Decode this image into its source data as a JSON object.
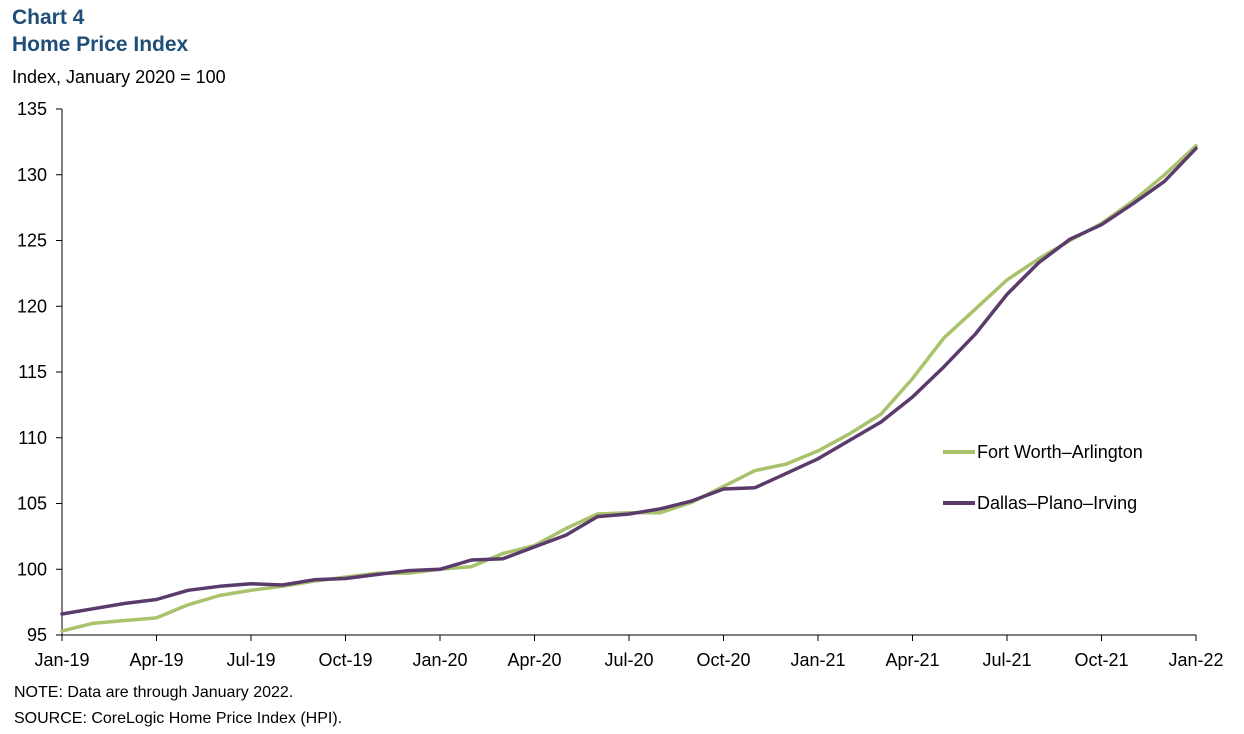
{
  "header": {
    "chart_number": "Chart 4",
    "title": "Home Price Index",
    "unit_label": "Index, January 2020 = 100"
  },
  "footer": {
    "note": "NOTE: Data are through January 2022.",
    "source": "SOURCE: CoreLogic Home Price Index (HPI)."
  },
  "chart_data": {
    "type": "line",
    "title": "Home Price Index",
    "ylabel": "Index, January 2020 = 100",
    "xlabel": "",
    "ylim": [
      95,
      135
    ],
    "yticks": [
      95,
      100,
      105,
      110,
      115,
      120,
      125,
      130,
      135
    ],
    "xtick_labels": [
      "Jan-19",
      "Apr-19",
      "Jul-19",
      "Oct-19",
      "Jan-20",
      "Apr-20",
      "Jul-20",
      "Oct-20",
      "Jan-21",
      "Apr-21",
      "Jul-21",
      "Oct-21",
      "Jan-22"
    ],
    "grid": false,
    "legend_position": "right",
    "x": [
      "Jan-19",
      "Feb-19",
      "Mar-19",
      "Apr-19",
      "May-19",
      "Jun-19",
      "Jul-19",
      "Aug-19",
      "Sep-19",
      "Oct-19",
      "Nov-19",
      "Dec-19",
      "Jan-20",
      "Feb-20",
      "Mar-20",
      "Apr-20",
      "May-20",
      "Jun-20",
      "Jul-20",
      "Aug-20",
      "Sep-20",
      "Oct-20",
      "Nov-20",
      "Dec-20",
      "Jan-21",
      "Feb-21",
      "Mar-21",
      "Apr-21",
      "May-21",
      "Jun-21",
      "Jul-21",
      "Aug-21",
      "Sep-21",
      "Oct-21",
      "Nov-21",
      "Dec-21",
      "Jan-22"
    ],
    "series": [
      {
        "name": "Fort Worth–Arlington",
        "color": "#a9c26c",
        "values": [
          95.3,
          95.9,
          96.1,
          96.3,
          97.3,
          98.0,
          98.4,
          98.7,
          99.1,
          99.4,
          99.7,
          99.7,
          100.0,
          100.2,
          101.2,
          101.8,
          103.1,
          104.2,
          104.3,
          104.3,
          105.1,
          106.3,
          107.5,
          108.0,
          109.0,
          110.3,
          111.8,
          114.5,
          117.6,
          119.8,
          122.0,
          123.6,
          125.0,
          126.3,
          128.0,
          130.0,
          132.2
        ]
      },
      {
        "name": "Dallas–Plano–Irving",
        "color": "#5b3b6b",
        "values": [
          96.6,
          97.0,
          97.4,
          97.7,
          98.4,
          98.7,
          98.9,
          98.8,
          99.2,
          99.3,
          99.6,
          99.9,
          100.0,
          100.7,
          100.8,
          101.7,
          102.6,
          104.0,
          104.2,
          104.6,
          105.2,
          106.1,
          106.2,
          107.3,
          108.4,
          109.8,
          111.2,
          113.1,
          115.4,
          117.9,
          120.9,
          123.3,
          125.1,
          126.2,
          127.8,
          129.5,
          132.0
        ]
      }
    ]
  }
}
